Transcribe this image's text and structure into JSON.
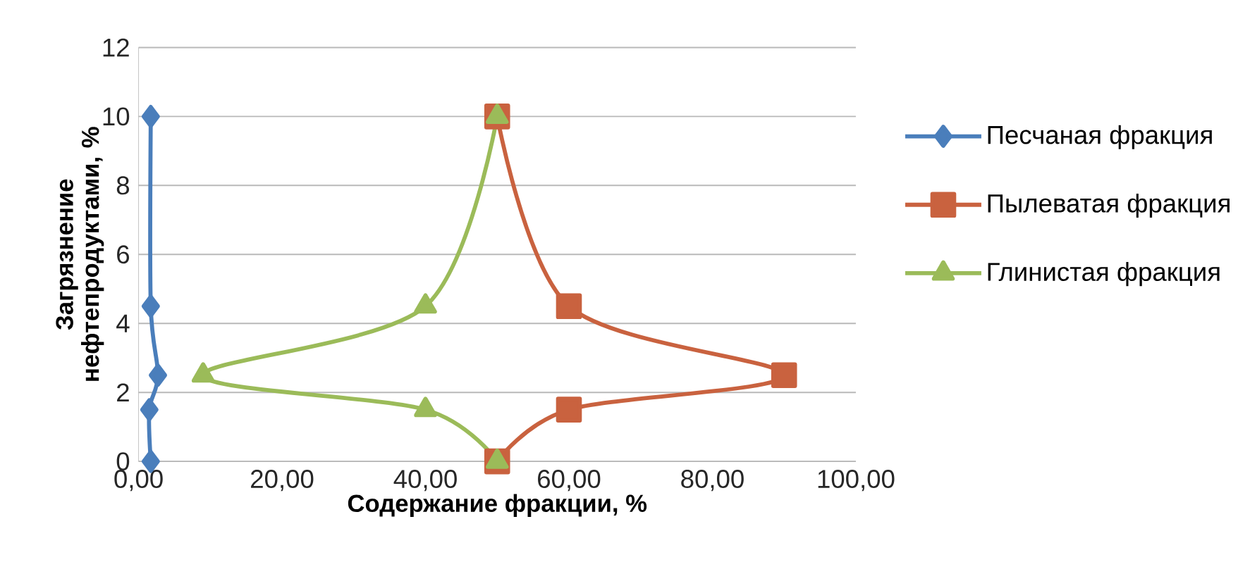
{
  "chart_data": {
    "type": "line",
    "xlabel": "Содержание фракции, %",
    "ylabel": "Загрязнение нефтепродуктами, %",
    "series": [
      {
        "name": "Песчаная фракция",
        "color": "#4a7ebb",
        "marker": "diamond",
        "x": [
          1.7,
          1.7,
          2.7,
          1.5,
          1.7
        ],
        "values": [
          10,
          4.5,
          2.5,
          1.5,
          0
        ]
      },
      {
        "name": "Пылеватая фракция",
        "color": "#c9623f",
        "marker": "square",
        "x": [
          50,
          60,
          90,
          60,
          50
        ],
        "values": [
          10,
          4.5,
          2.5,
          1.5,
          0
        ]
      },
      {
        "name": "Глинистая фракция",
        "color": "#9bbb59",
        "marker": "triangle",
        "x": [
          50,
          40,
          9,
          40,
          50
        ],
        "values": [
          10,
          4.5,
          2.5,
          1.5,
          0
        ]
      }
    ],
    "xlim": [
      0,
      100
    ],
    "ylim": [
      0,
      12
    ],
    "xticks": [
      {
        "value": 0,
        "label": "0,00"
      },
      {
        "value": 20,
        "label": "20,00"
      },
      {
        "value": 40,
        "label": "40,00"
      },
      {
        "value": 60,
        "label": "60,00"
      },
      {
        "value": 80,
        "label": "80,00"
      },
      {
        "value": 100,
        "label": "100,00"
      }
    ],
    "yticks": [
      0,
      2,
      4,
      6,
      8,
      10,
      12
    ],
    "grid": "y",
    "legend": "right",
    "line_style": "solid"
  }
}
